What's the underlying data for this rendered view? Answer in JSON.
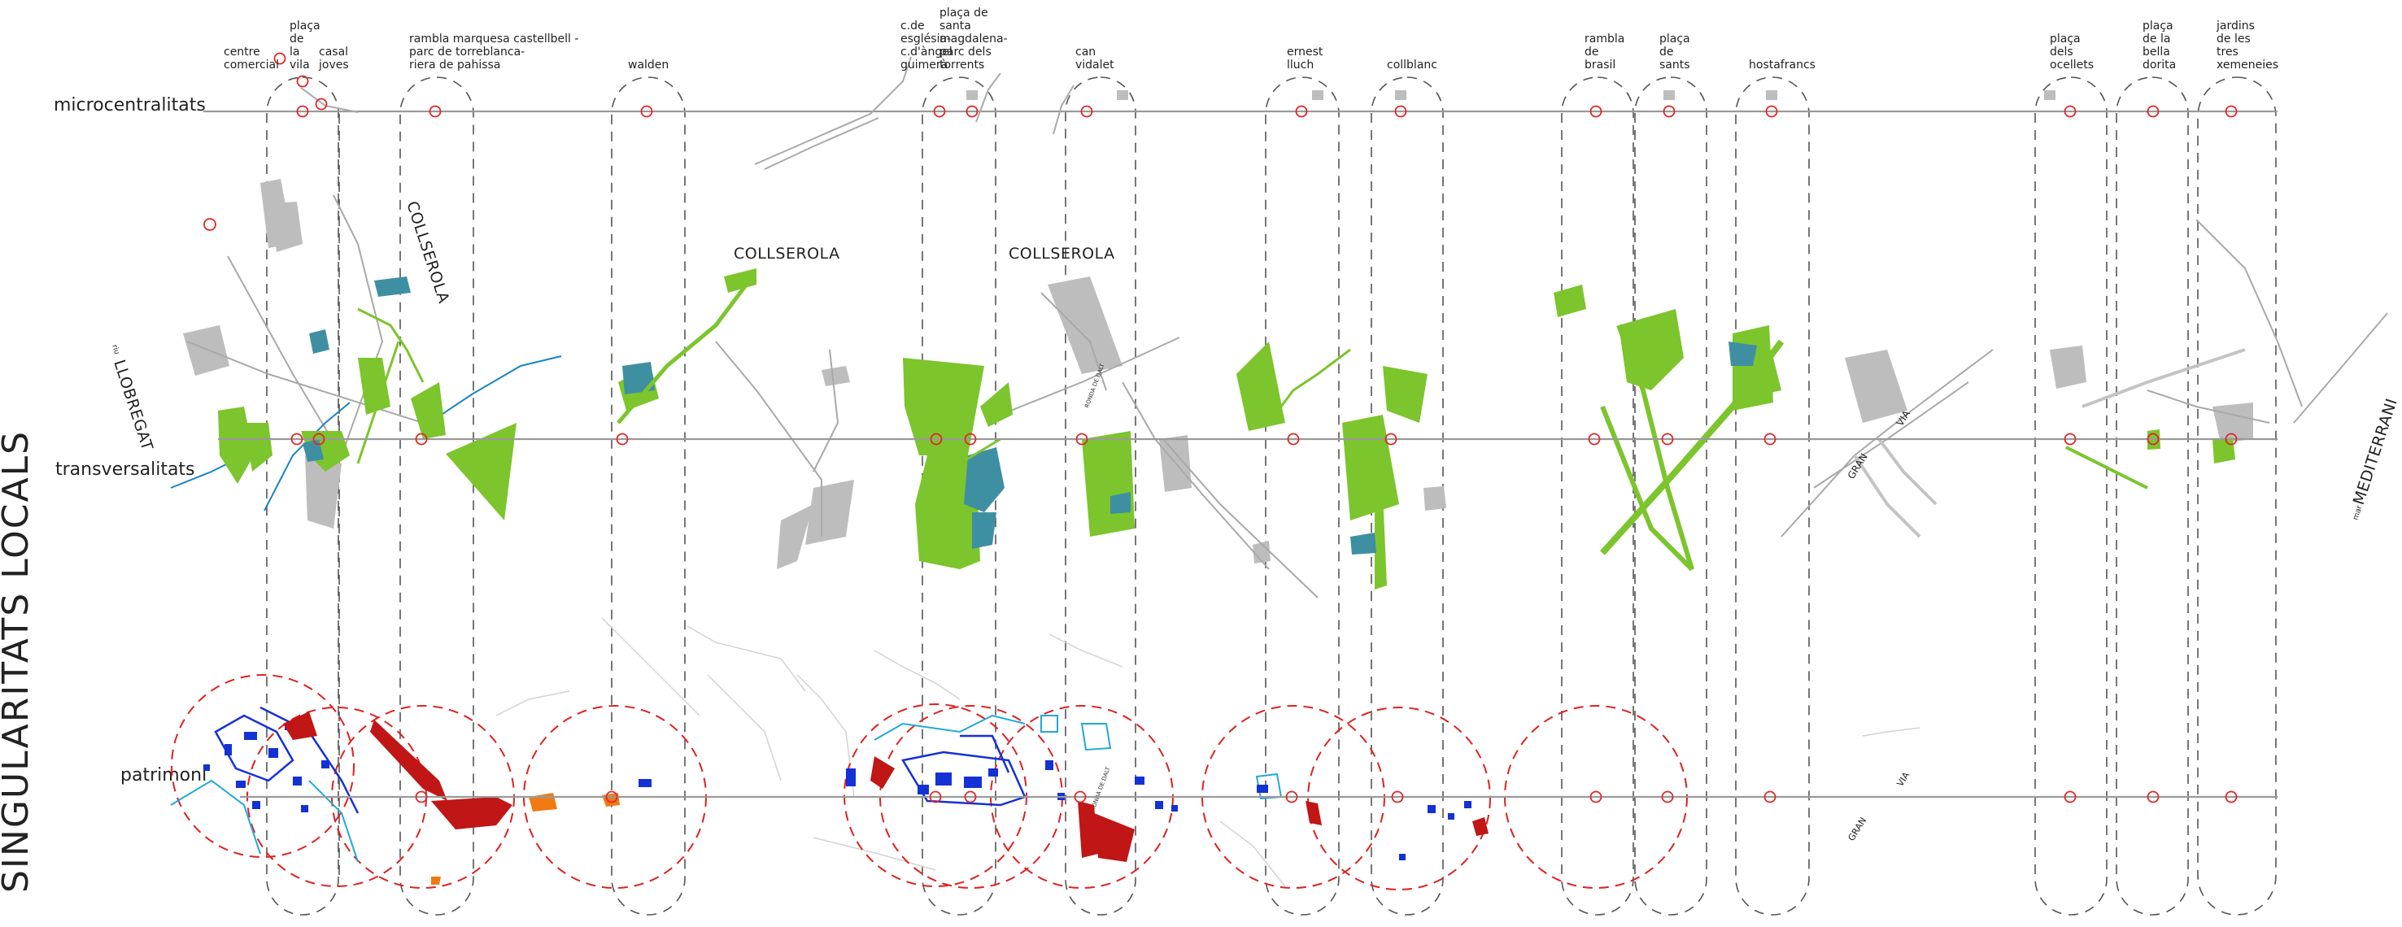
{
  "title": "SINGULARITATS LOCALS",
  "rows": {
    "micro": "microcentralitats",
    "trans": "transversalitats",
    "patri": "patrimoni"
  },
  "columns": [
    {
      "id": "c1",
      "label": [
        "centre",
        "comercial"
      ]
    },
    {
      "id": "c2",
      "label": [
        "plaça",
        "de",
        "la",
        "vila"
      ]
    },
    {
      "id": "c3",
      "label": [
        "casal",
        "joves"
      ]
    },
    {
      "id": "c4",
      "label": [
        "rambla marquesa castellbell -",
        "parc de torreblanca-",
        "riera de pahissa"
      ]
    },
    {
      "id": "c5",
      "label": [
        "walden"
      ]
    },
    {
      "id": "c6",
      "label": [
        "c.de",
        "església-",
        "c.d'àngel",
        "guimerà"
      ]
    },
    {
      "id": "c7",
      "label": [
        "plaça de",
        "santa",
        "magdalena-",
        "parc dels",
        "torrents"
      ]
    },
    {
      "id": "c8",
      "label": [
        "can",
        "vidalet"
      ]
    },
    {
      "id": "c9",
      "label": [
        "ernest",
        "lluch"
      ]
    },
    {
      "id": "c10",
      "label": [
        "collblanc"
      ]
    },
    {
      "id": "c11",
      "label": [
        "rambla",
        "de",
        "brasil"
      ]
    },
    {
      "id": "c12",
      "label": [
        "plaça",
        "de",
        "sants"
      ]
    },
    {
      "id": "c13",
      "label": [
        "hostafrancs"
      ]
    },
    {
      "id": "c14",
      "label": [
        "plaça",
        "dels",
        "ocellets"
      ]
    },
    {
      "id": "c15",
      "label": [
        "plaça",
        "de la",
        "bella",
        "dorita"
      ]
    },
    {
      "id": "c16",
      "label": [
        "jardins",
        "de les",
        "tres",
        "xemeneies"
      ]
    }
  ],
  "landmarks": {
    "collserola1": "COLLSEROLA",
    "collserola2": "COLLSEROLA",
    "collserola3": "COLLSEROLA",
    "llobregat_prefix": "riu",
    "llobregat": "LLOBREGAT",
    "mediterrani_prefix": "mar",
    "mediterrani": "MEDITERRANI",
    "granvia": "GRAN",
    "granvia2": "VIA",
    "granvia3": "GRAN",
    "granvia4": "VIA",
    "ronda1": "RONDA DE DALT",
    "ronda2": "RONDA DE DALT"
  },
  "colors": {
    "green": "#7cc52d",
    "teal": "#3f8fa3",
    "blue": "#1431d6",
    "red": "#c01616",
    "orange": "#f07a12",
    "node": "#e22626",
    "grey": "#bdbdbd"
  }
}
